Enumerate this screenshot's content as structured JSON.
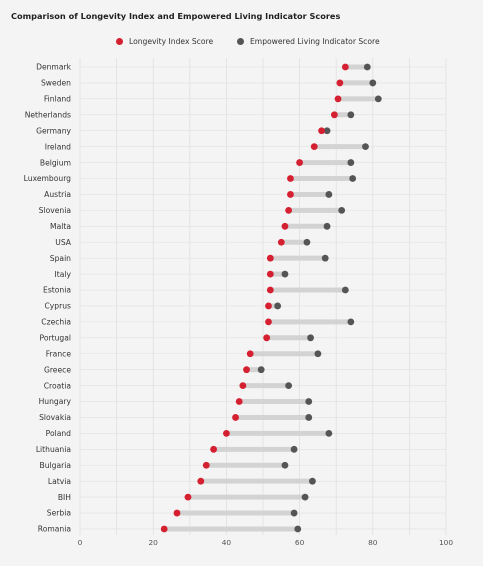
{
  "chart_data": {
    "type": "dumbbell",
    "title": "Comparison of Longevity Index and Empowered Living Indicator Scores",
    "xlim": [
      0,
      100
    ],
    "xticks": [
      0,
      20,
      40,
      60,
      80,
      100
    ],
    "grid": true,
    "legend_position": "top-center",
    "categories": [
      "Denmark",
      "Sweden",
      "Finland",
      "Netherlands",
      "Germany",
      "Ireland",
      "Belgium",
      "Luxembourg",
      "Austria",
      "Slovenia",
      "Malta",
      "USA",
      "Spain",
      "Italy",
      "Estonia",
      "Cyprus",
      "Czechia",
      "Portugal",
      "France",
      "Greece",
      "Croatia",
      "Hungary",
      "Slovakia",
      "Poland",
      "Lithuania",
      "Bulgaria",
      "Latvia",
      "BIH",
      "Serbia",
      "Romania"
    ],
    "series": [
      {
        "name": "Longevity Index Score",
        "color": "#d42030",
        "values": [
          72.5,
          71,
          70.5,
          69.5,
          66,
          64,
          60,
          57.5,
          57.5,
          57,
          56,
          55,
          52,
          52,
          52,
          51.5,
          51.5,
          51,
          46.5,
          45.5,
          44.5,
          43.5,
          42.5,
          40,
          36.5,
          34.5,
          33,
          29.5,
          26.5,
          23
        ]
      },
      {
        "name": "Empowered Living Indicator Score",
        "color": "#555555",
        "values": [
          78.5,
          80,
          81.5,
          74,
          67.5,
          78,
          74,
          74.5,
          68,
          71.5,
          67.5,
          62,
          67,
          56,
          72.5,
          54,
          74,
          63,
          65,
          49.5,
          57,
          62.5,
          62.5,
          68,
          58.5,
          56,
          63.5,
          61.5,
          58.5,
          59.5
        ]
      }
    ]
  },
  "colors": {
    "background": "#f4f4f4",
    "connector": "#d3d3d3",
    "gridline": "#e0e0e0"
  }
}
